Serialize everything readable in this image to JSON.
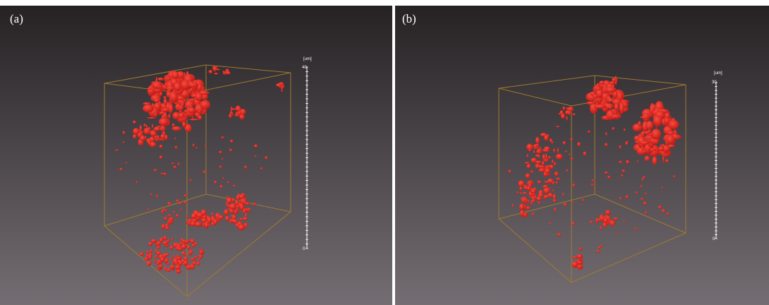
{
  "panels": [
    {
      "label": "(a)",
      "scale": {
        "unit": "[um]",
        "top": "40",
        "bottom": "0"
      }
    },
    {
      "label": "(b)",
      "scale": {
        "unit": "[um]",
        "top": "30",
        "bottom": "0"
      }
    }
  ]
}
